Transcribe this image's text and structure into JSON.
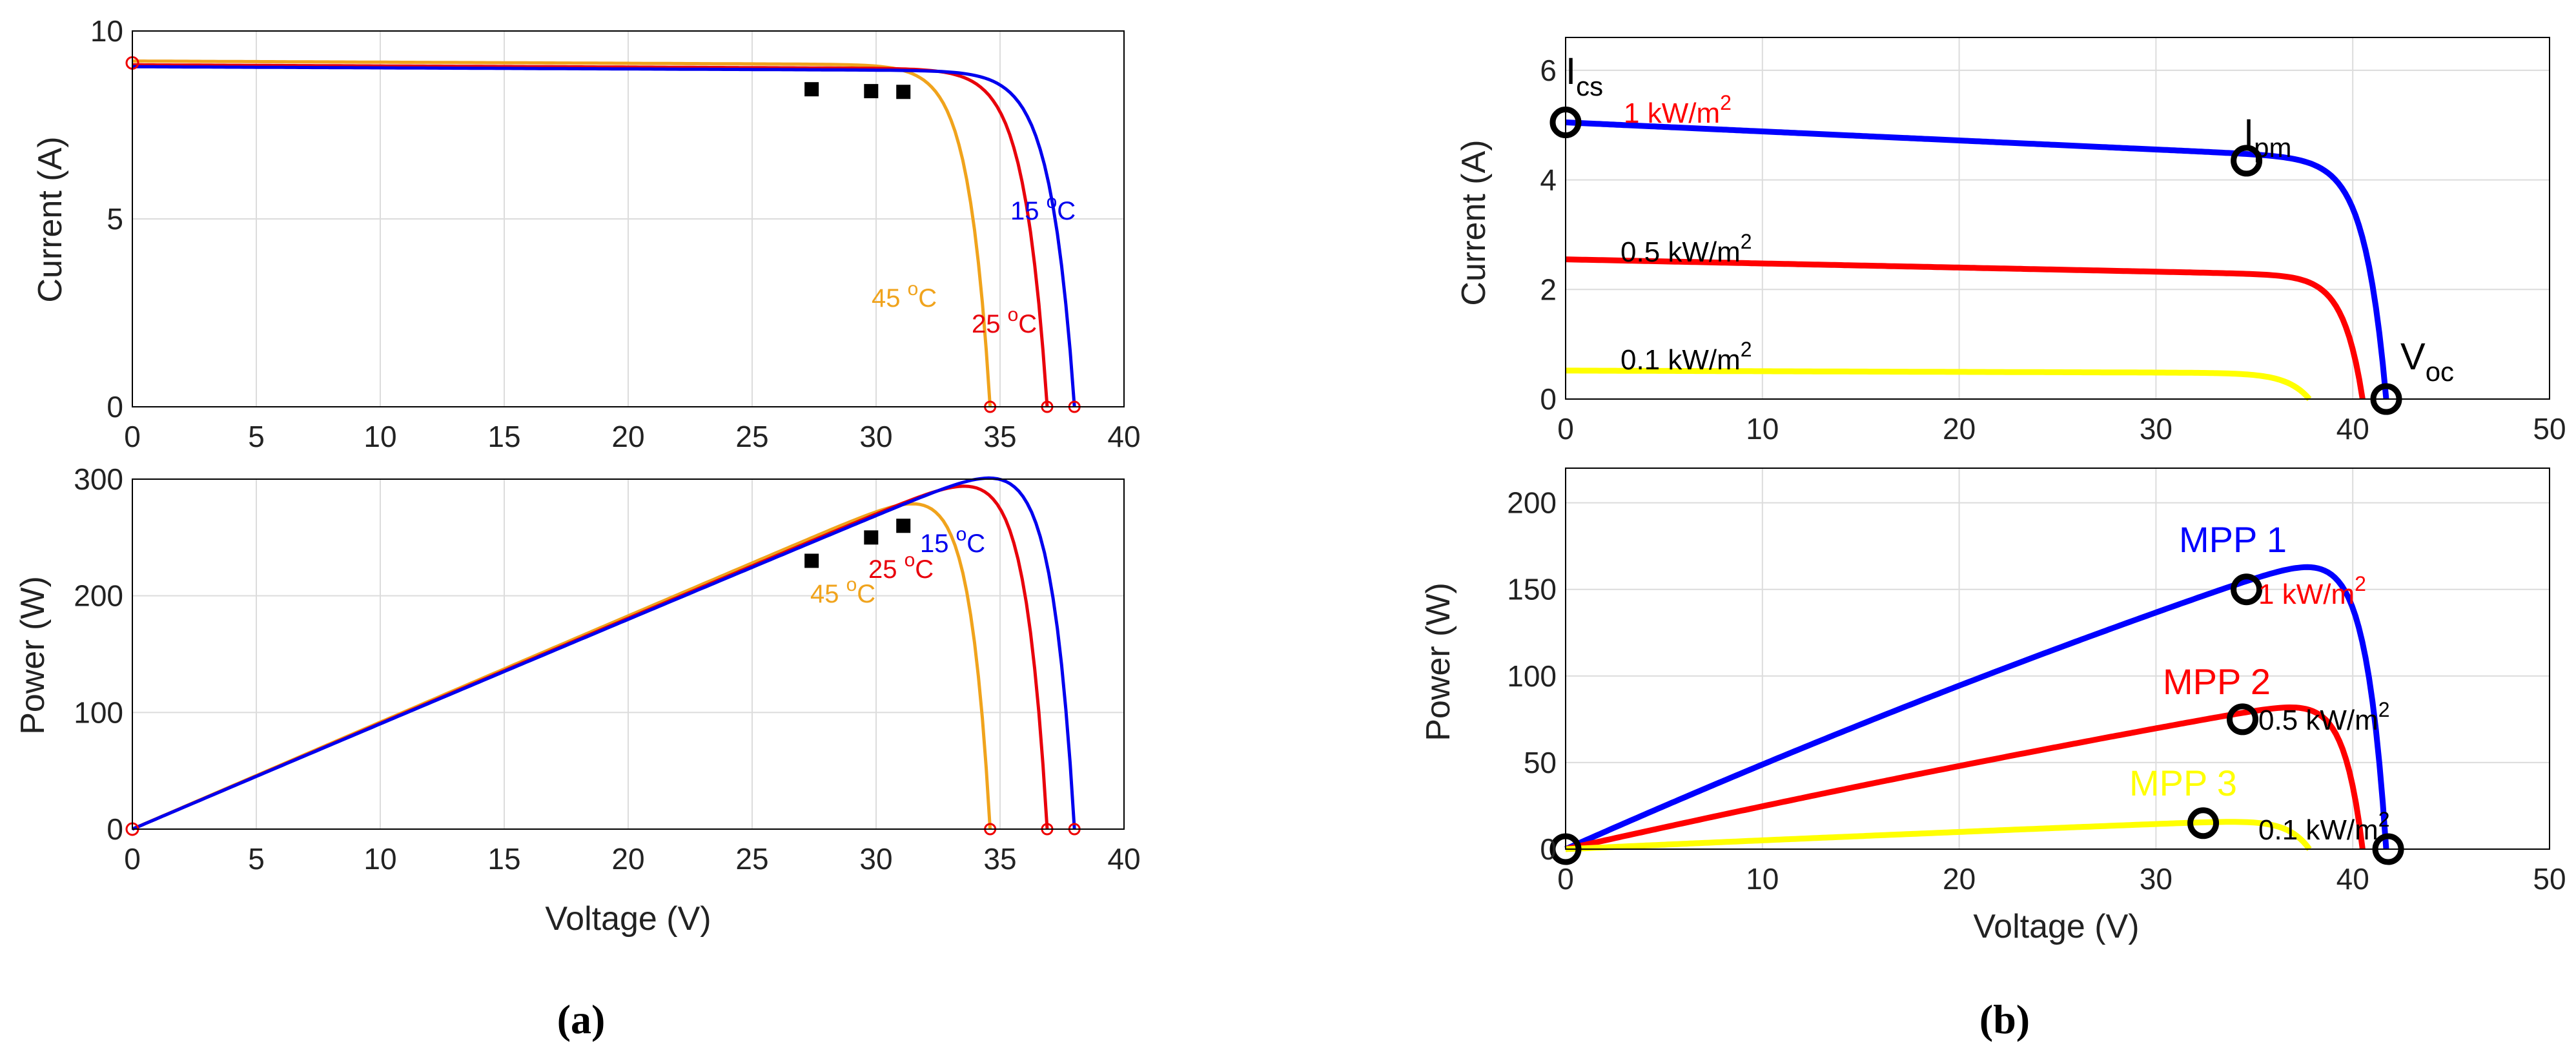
{
  "panel_labels": {
    "a": "(a)",
    "b": "(b)"
  },
  "colors": {
    "t15": "#0000ee",
    "t25": "#e8000b",
    "t45": "#f0a31c",
    "g1": "#0000ff",
    "g05": "#ff0000",
    "g01": "#ffff00",
    "mpp": "#000000",
    "open": "#ff0000"
  },
  "panels": {
    "a_iv": {
      "ylabel": "Current (A)",
      "xlabel": ""
    },
    "a_pv": {
      "ylabel": "Power (W)",
      "xlabel": "Voltage (V)"
    },
    "b_iv": {
      "ylabel": "Current (A)",
      "xlabel": ""
    },
    "b_pv": {
      "ylabel": "Power (W)",
      "xlabel": "Voltage (V)"
    }
  },
  "annotations": {
    "a_iv": {
      "t15": [
        "15 ",
        "o",
        "C"
      ],
      "t25": [
        "25 ",
        "o",
        "C"
      ],
      "t45": [
        "45 ",
        "o",
        "C"
      ]
    },
    "a_pv": {
      "t15": [
        "15 ",
        "o",
        "C"
      ],
      "t25": [
        "25 ",
        "o",
        "C"
      ],
      "t45": [
        "45 ",
        "o",
        "C"
      ]
    },
    "b_iv": {
      "isc": [
        "I",
        "cs"
      ],
      "ipm": [
        "I",
        "pm"
      ],
      "voc": [
        "V",
        "oc"
      ],
      "g1": [
        "1 kW/m",
        "2"
      ],
      "g05": [
        "0.5 kW/m",
        "2"
      ],
      "g01": [
        "0.1 kW/m",
        "2"
      ]
    },
    "b_pv": {
      "mpp1": "MPP 1",
      "mpp2": "MPP 2",
      "mpp3": "MPP 3",
      "g1": [
        "1 kW/m",
        "2"
      ],
      "g05": [
        "0.5 kW/m",
        "2"
      ],
      "g01": [
        "0.1 kW/m",
        "2"
      ]
    }
  },
  "chart_data": [
    {
      "id": "a_iv",
      "type": "line",
      "title": "",
      "xlabel": "",
      "ylabel": "Current (A)",
      "xlim": [
        0,
        40
      ],
      "ylim": [
        0,
        10
      ],
      "xticks": [
        0,
        5,
        10,
        15,
        20,
        25,
        30,
        35,
        40
      ],
      "yticks": [
        0,
        5,
        10
      ],
      "grid": true,
      "series": [
        {
          "name": "45 °C",
          "color": "#f0a31c",
          "isc": 9.2,
          "voc": 34.6,
          "a": 0.025,
          "slope": 0.003,
          "mpp": [
            27.4,
            8.45
          ]
        },
        {
          "name": "25 °C",
          "color": "#e8000b",
          "isc": 9.1,
          "voc": 36.9,
          "a": 0.025,
          "slope": 0.003,
          "mpp": [
            29.8,
            8.4
          ]
        },
        {
          "name": "15 °C",
          "color": "#0000ee",
          "isc": 9.05,
          "voc": 38.0,
          "a": 0.025,
          "slope": 0.003,
          "mpp": [
            31.1,
            8.38
          ]
        }
      ]
    },
    {
      "id": "a_pv",
      "type": "line",
      "title": "",
      "xlabel": "Voltage (V)",
      "ylabel": "Power (W)",
      "xlim": [
        0,
        40
      ],
      "ylim": [
        0,
        300
      ],
      "xticks": [
        0,
        5,
        10,
        15,
        20,
        25,
        30,
        35,
        40
      ],
      "yticks": [
        0,
        100,
        200,
        300
      ],
      "grid": true,
      "series": [
        {
          "name": "45 °C",
          "color": "#f0a31c",
          "voc": 34.6,
          "mpp": [
            27.4,
            230
          ]
        },
        {
          "name": "25 °C",
          "color": "#e8000b",
          "voc": 36.9,
          "mpp": [
            29.8,
            250
          ]
        },
        {
          "name": "15 °C",
          "color": "#0000ee",
          "voc": 38.0,
          "mpp": [
            31.1,
            260
          ]
        }
      ]
    },
    {
      "id": "b_iv",
      "type": "line",
      "title": "",
      "xlabel": "",
      "ylabel": "Current (A)",
      "xlim": [
        0,
        50
      ],
      "ylim": [
        0,
        6.6
      ],
      "xticks": [
        0,
        10,
        20,
        30,
        40,
        50
      ],
      "yticks": [
        0,
        2,
        4,
        6
      ],
      "grid": true,
      "series": [
        {
          "name": "1 kW/m²",
          "color": "#0000ff",
          "isc": 5.05,
          "voc": 41.7,
          "a": 0.026,
          "slope": 0.0165,
          "mpp": [
            34.6,
            4.35
          ]
        },
        {
          "name": "0.5 kW/m²",
          "color": "#ff0000",
          "isc": 2.55,
          "voc": 40.5,
          "a": 0.024,
          "slope": 0.0075
        },
        {
          "name": "0.1 kW/m²",
          "color": "#ffff00",
          "isc": 0.52,
          "voc": 37.8,
          "a": 0.03,
          "slope": 0.0012
        }
      ]
    },
    {
      "id": "b_pv",
      "type": "line",
      "title": "",
      "xlabel": "Voltage (V)",
      "ylabel": "Power (W)",
      "xlim": [
        0,
        50
      ],
      "ylim": [
        0,
        220
      ],
      "xticks": [
        0,
        10,
        20,
        30,
        40,
        50
      ],
      "yticks": [
        0,
        50,
        100,
        150,
        200
      ],
      "grid": true,
      "series": [
        {
          "name": "1 kW/m²",
          "color": "#0000ff",
          "voc": 41.7,
          "mpp": [
            34.6,
            150
          ],
          "label": "MPP 1"
        },
        {
          "name": "0.5 kW/m²",
          "color": "#ff0000",
          "voc": 40.5,
          "mpp": [
            34.4,
            75
          ],
          "label": "MPP 2"
        },
        {
          "name": "0.1 kW/m²",
          "color": "#ffff00",
          "voc": 37.8,
          "mpp": [
            32.4,
            15
          ],
          "label": "MPP 3"
        }
      ]
    }
  ]
}
